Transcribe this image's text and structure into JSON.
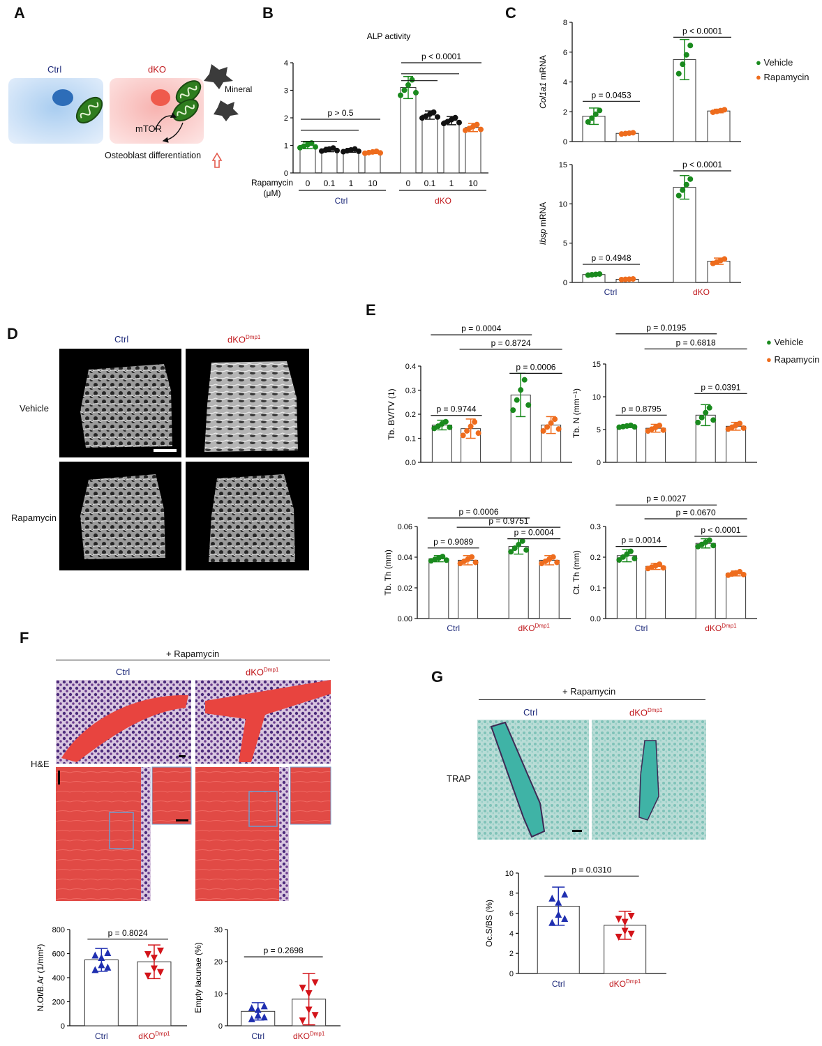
{
  "panels": {
    "A": "A",
    "B": "B",
    "C": "C",
    "D": "D",
    "E": "E",
    "F": "F",
    "G": "G"
  },
  "colors": {
    "green": "#1a8a1e",
    "orange": "#ee6c1d",
    "black": "#111111",
    "blue": "#1f2fb0",
    "red": "#d3141a",
    "navy": "#1e2a7a",
    "dko_red": "#c0171b"
  },
  "panel_a": {
    "ctrl_label": "Ctrl",
    "dko_label": "dKO",
    "mineral_label": "Mineral",
    "mtor_label": "mTOR",
    "osteo_label": "Osteoblast differentiation"
  },
  "panel_d": {
    "col1": "Ctrl",
    "col2_main": "dKO",
    "col2_sup": "Dmp1",
    "row1": "Vehicle",
    "row2": "Rapamycin"
  },
  "panel_f": {
    "header": "+ Rapamycin",
    "col1": "Ctrl",
    "col2_main": "dKO",
    "col2_sup": "Dmp1",
    "row_label": "H&E"
  },
  "panel_g": {
    "header": "+ Rapamycin",
    "col1": "Ctrl",
    "col2_main": "dKO",
    "col2_sup": "Dmp1",
    "row_label": "TRAP"
  },
  "chart_data": [
    {
      "id": "B",
      "type": "bar",
      "title": "ALP activity",
      "ylabel": "",
      "ylim": [
        0,
        4
      ],
      "yticks": [
        0,
        1,
        2,
        3,
        4
      ],
      "xrow_label": "Rapamycin (μM)",
      "categories": [
        "0",
        "0.1",
        "1",
        "10",
        "0",
        "0.1",
        "1",
        "10"
      ],
      "groups": [
        "Ctrl",
        "dKO"
      ],
      "values": [
        1.0,
        0.85,
        0.82,
        0.75,
        3.1,
        2.1,
        1.9,
        1.65
      ],
      "errors": [
        0.12,
        0.08,
        0.07,
        0.05,
        0.4,
        0.15,
        0.15,
        0.15
      ],
      "colors": [
        "#1a8a1e",
        "#111111",
        "#111111",
        "#ee6c1d",
        "#1a8a1e",
        "#111111",
        "#111111",
        "#ee6c1d"
      ],
      "annotations": [
        "p > 0.5",
        "p < 0.0001"
      ]
    },
    {
      "id": "C1",
      "type": "bar",
      "ylabel": "Col1a1 mRNA",
      "ylabel_italic": "Col1a1",
      "ylabel_rest": " mRNA",
      "ylim": [
        0,
        8
      ],
      "yticks": [
        0,
        2,
        4,
        6,
        8
      ],
      "groups": [
        "Ctrl",
        "dKO"
      ],
      "series": [
        {
          "name": "Vehicle",
          "values": [
            1.7,
            5.5
          ],
          "errors": [
            0.55,
            1.35
          ]
        },
        {
          "name": "Rapamycin",
          "values": [
            0.55,
            2.05
          ],
          "errors": [
            0.06,
            0.12
          ]
        }
      ],
      "annotations": [
        "p = 0.0453",
        "p < 0.0001"
      ]
    },
    {
      "id": "C2",
      "type": "bar",
      "ylabel": "Ibsp mRNA",
      "ylabel_italic": "Ibsp",
      "ylabel_rest": " mRNA",
      "ylim": [
        0,
        15
      ],
      "yticks": [
        0,
        5,
        10,
        15
      ],
      "groups": [
        "Ctrl",
        "dKO"
      ],
      "series": [
        {
          "name": "Vehicle",
          "values": [
            1.0,
            12.1
          ],
          "errors": [
            0.1,
            1.5
          ]
        },
        {
          "name": "Rapamycin",
          "values": [
            0.4,
            2.7
          ],
          "errors": [
            0.06,
            0.4
          ]
        }
      ],
      "annotations": [
        "p = 0.4948",
        "p < 0.0001"
      ]
    },
    {
      "id": "E1",
      "type": "bar",
      "ylabel": "Tb. BV/TV (1)",
      "ylim": [
        0,
        0.4
      ],
      "yticks": [
        "0.0",
        "0.1",
        "0.2",
        "0.3",
        "0.4"
      ],
      "groups": [
        "Ctrl",
        "dKO"
      ],
      "series": [
        {
          "name": "Vehicle",
          "values": [
            0.155,
            0.28
          ],
          "errors": [
            0.02,
            0.09
          ]
        },
        {
          "name": "Rapamycin",
          "values": [
            0.14,
            0.155
          ],
          "errors": [
            0.04,
            0.035
          ]
        }
      ],
      "annotations": [
        "p = 0.0004",
        "p = 0.8724",
        "p = 0.9744",
        "p = 0.0006"
      ]
    },
    {
      "id": "E2",
      "type": "bar",
      "ylabel": "Tb. N (mm⁻¹)",
      "ylim": [
        0,
        15
      ],
      "yticks": [
        0,
        5,
        10,
        15
      ],
      "groups": [
        "Ctrl",
        "dKO"
      ],
      "series": [
        {
          "name": "Vehicle",
          "values": [
            5.5,
            7.2
          ],
          "errors": [
            0.2,
            1.6
          ]
        },
        {
          "name": "Rapamycin",
          "values": [
            5.2,
            5.5
          ],
          "errors": [
            0.6,
            0.6
          ]
        }
      ],
      "annotations": [
        "p = 0.0195",
        "p = 0.6818",
        "p = 0.8795",
        "p = 0.0391"
      ]
    },
    {
      "id": "E3",
      "type": "bar",
      "ylabel": "Tb. Th (mm)",
      "ylim": [
        0,
        0.06
      ],
      "yticks": [
        "0.00",
        "0.02",
        "0.04",
        "0.06"
      ],
      "groups": [
        "Ctrl",
        "dKO"
      ],
      "series": [
        {
          "name": "Vehicle",
          "values": [
            0.039,
            0.047
          ],
          "errors": [
            0.002,
            0.005
          ]
        },
        {
          "name": "Rapamycin",
          "values": [
            0.038,
            0.038
          ],
          "errors": [
            0.003,
            0.003
          ]
        }
      ],
      "annotations": [
        "p = 0.0006",
        "p = 0.9751",
        "p = 0.9089",
        "p = 0.0004"
      ]
    },
    {
      "id": "E4",
      "type": "bar",
      "ylabel": "Ct. Th (mm)",
      "ylim": [
        0,
        0.3
      ],
      "yticks": [
        "0.0",
        "0.1",
        "0.2",
        "0.3"
      ],
      "groups": [
        "Ctrl",
        "dKO"
      ],
      "series": [
        {
          "name": "Vehicle",
          "values": [
            0.205,
            0.245
          ],
          "errors": [
            0.02,
            0.015
          ]
        },
        {
          "name": "Rapamycin",
          "values": [
            0.17,
            0.147
          ],
          "errors": [
            0.01,
            0.008
          ]
        }
      ],
      "annotations": [
        "p = 0.0027",
        "p = 0.0670",
        "p = 0.0014",
        "p < 0.0001"
      ]
    },
    {
      "id": "F1",
      "type": "bar",
      "ylabel": "N.Ot/B.Ar (1/mm²)",
      "ylim": [
        0,
        800
      ],
      "yticks": [
        0,
        200,
        400,
        600,
        800
      ],
      "categories": [
        "Ctrl",
        "dKO"
      ],
      "values": [
        548,
        532
      ],
      "errors": [
        95,
        140
      ],
      "annotations": [
        "p = 0.8024"
      ]
    },
    {
      "id": "F2",
      "type": "bar",
      "ylabel": "Empty lacunae (%)",
      "ylim": [
        0,
        30
      ],
      "yticks": [
        0,
        10,
        20,
        30
      ],
      "categories": [
        "Ctrl",
        "dKO"
      ],
      "values": [
        4.5,
        8.3
      ],
      "errors": [
        2.7,
        8.0
      ],
      "annotations": [
        "p = 0.2698"
      ]
    },
    {
      "id": "G1",
      "type": "bar",
      "ylabel": "Oc.S/BS (%)",
      "ylim": [
        0,
        10
      ],
      "yticks": [
        0,
        2,
        4,
        6,
        8,
        10
      ],
      "categories": [
        "Ctrl",
        "dKO"
      ],
      "values": [
        6.7,
        4.8
      ],
      "errors": [
        1.9,
        1.4
      ],
      "annotations": [
        "p = 0.0310"
      ]
    }
  ],
  "legend": {
    "vehicle": "Vehicle",
    "rapamycin": "Rapamycin"
  }
}
